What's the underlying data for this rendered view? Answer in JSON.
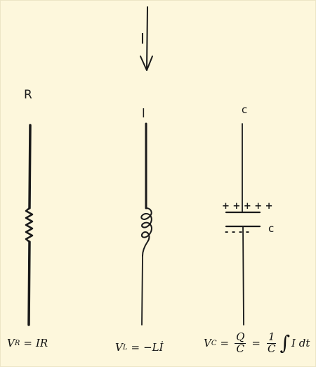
{
  "colors": {
    "background": "#fdf7dc",
    "ink": "#1a1a1a"
  },
  "labels": {
    "resistor": "R",
    "current_arrow": "I",
    "inductor": "l",
    "capacitor_top": "c",
    "capacitor_side": "c",
    "plus_charges": "+ + + + +",
    "minus_charges": "- - - -"
  },
  "equations": {
    "resistor": {
      "lhs_symbol": "V",
      "lhs_sub": "R",
      "equals": "=",
      "rhs": "IR"
    },
    "inductor": {
      "lhs_symbol": "V",
      "lhs_sub": "L",
      "equals": "=",
      "rhs": "−Lİ"
    },
    "capacitor": {
      "lhs_symbol": "V",
      "lhs_sub": "C",
      "equals1": "=",
      "frac1_num": "Q",
      "frac1_den": "C",
      "equals2": "=",
      "frac2_num": "1",
      "frac2_den": "C",
      "integral": "∫",
      "integrand": "I dt"
    }
  }
}
